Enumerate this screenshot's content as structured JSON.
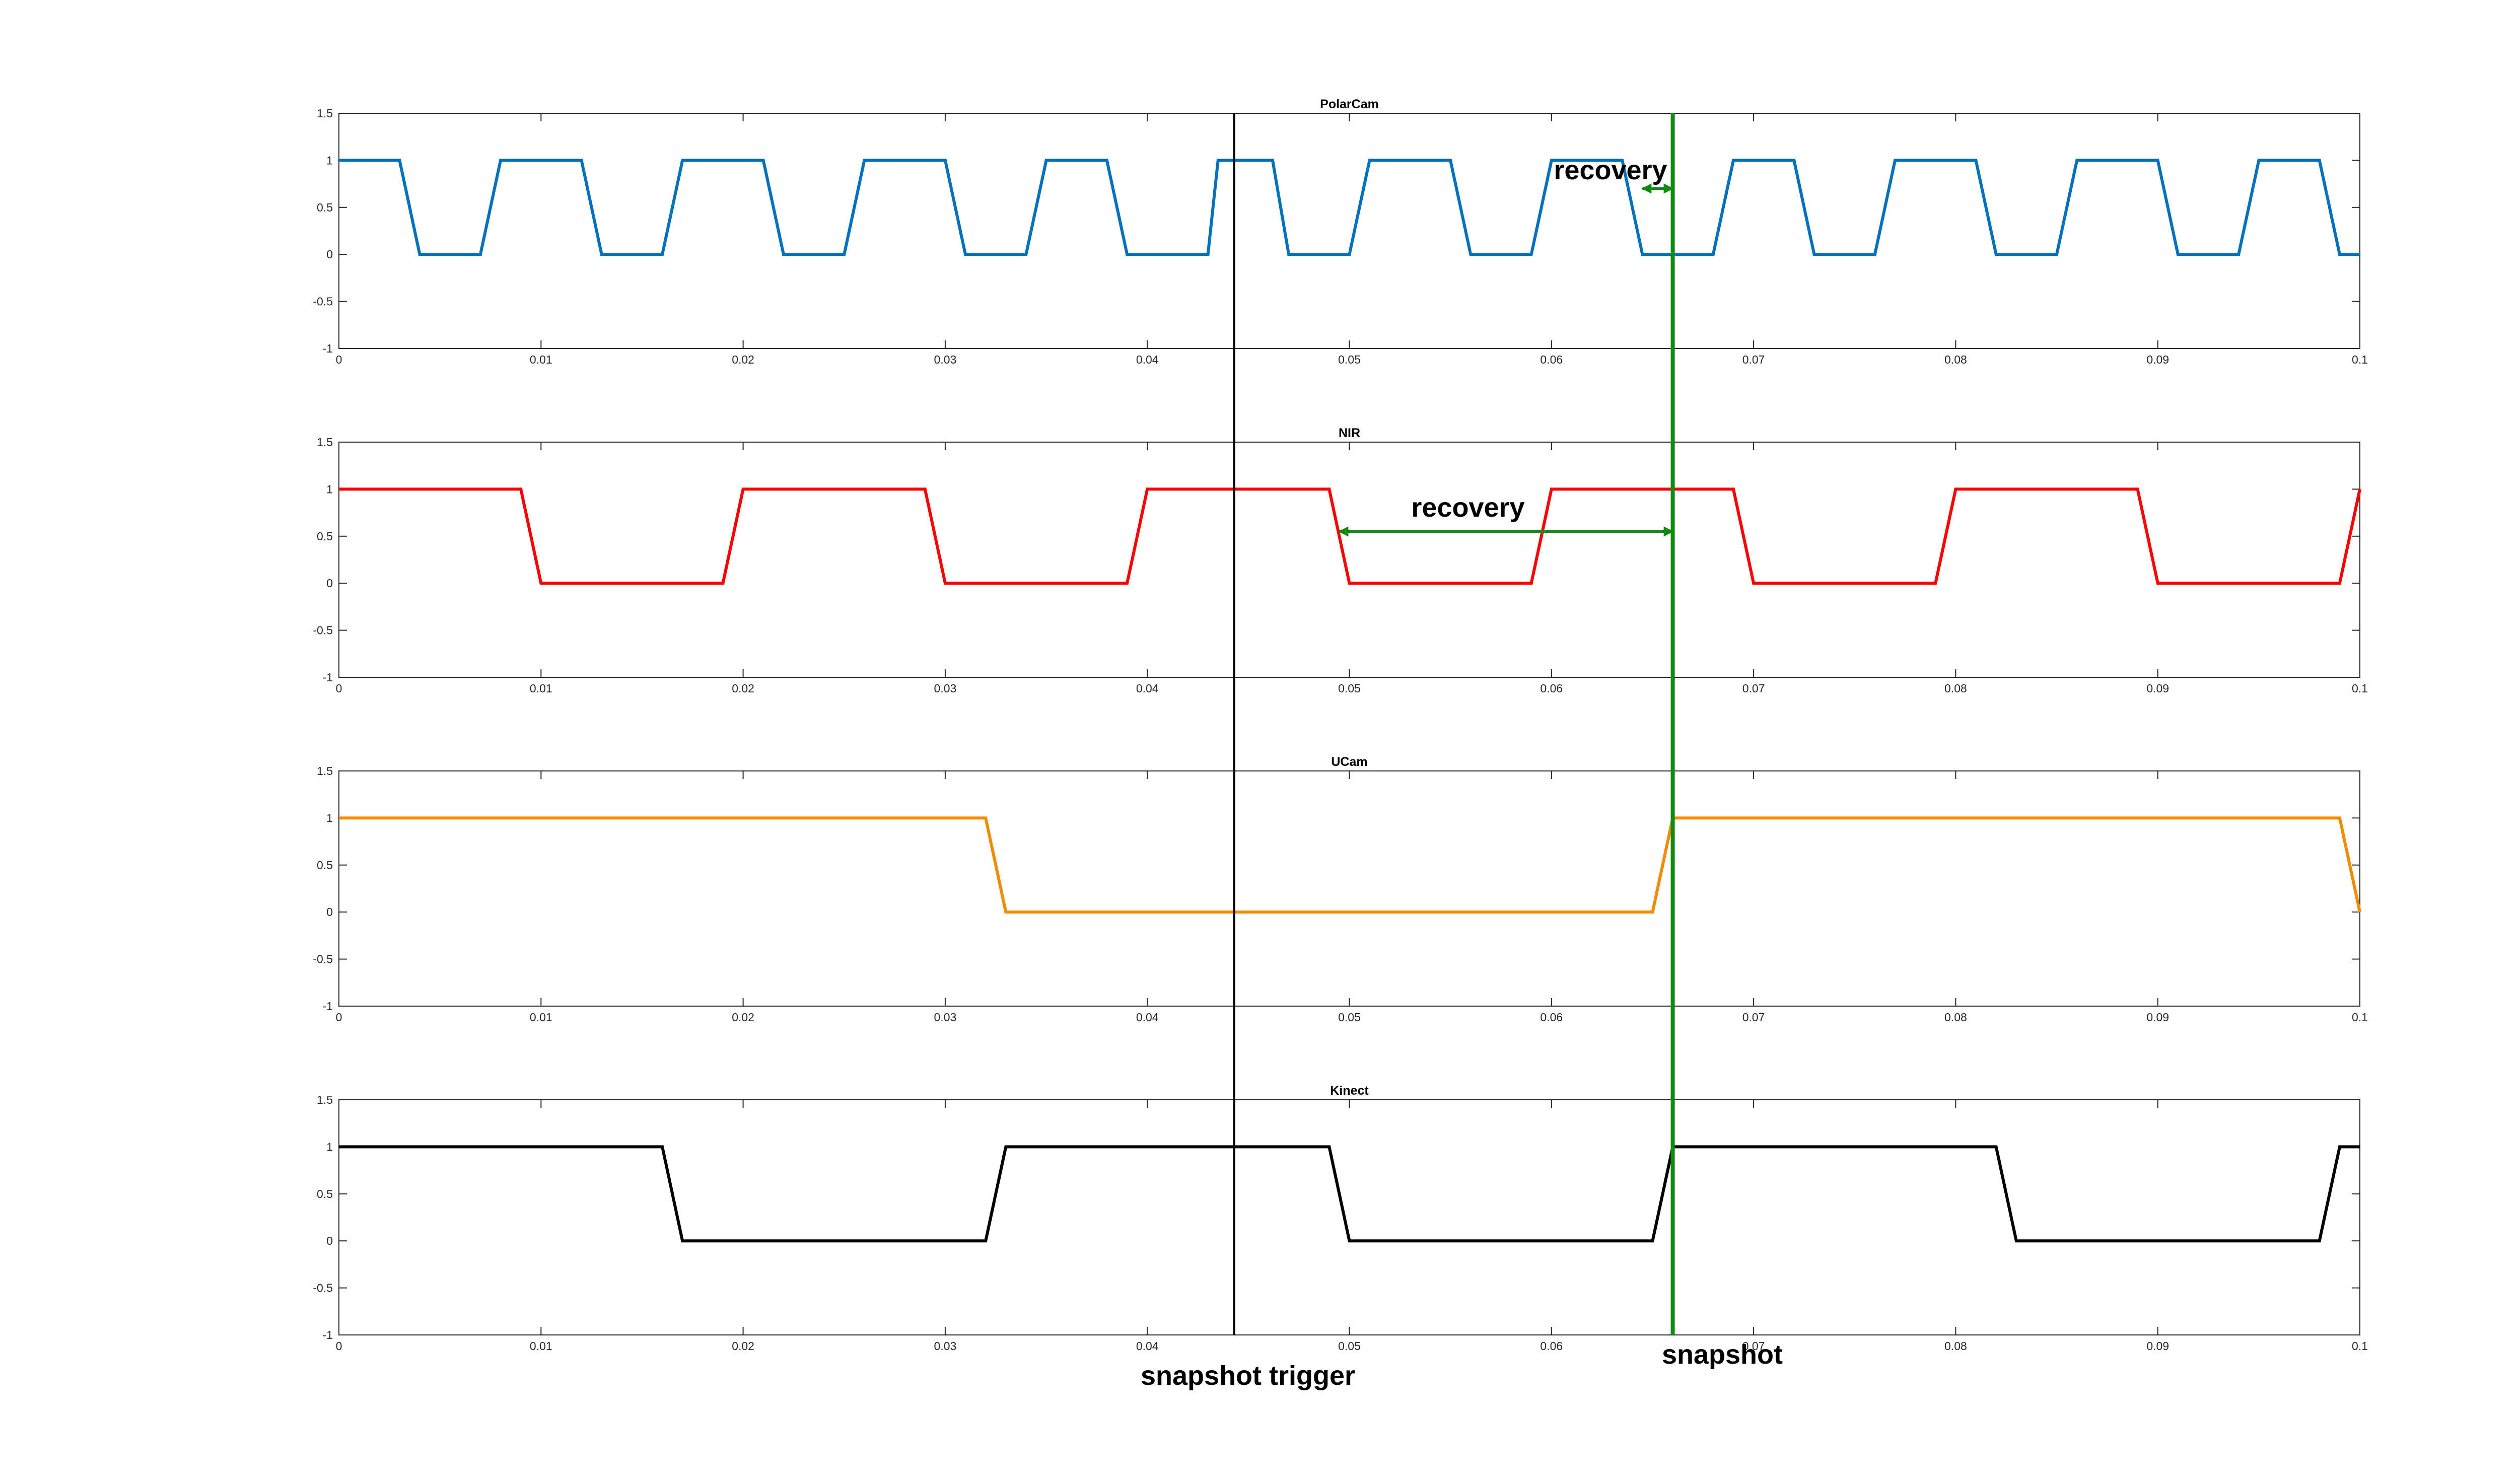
{
  "chart_data": [
    {
      "type": "line",
      "title": "PolarCam",
      "color": "#0072BD",
      "xlim": [
        0,
        0.1
      ],
      "ylim": [
        -1,
        1.5
      ],
      "xticks": [
        0,
        0.01,
        0.02,
        0.03,
        0.04,
        0.05,
        0.06,
        0.07,
        0.08,
        0.09,
        0.1
      ],
      "xtick_labels": [
        "0",
        "0.01",
        "0.02",
        "0.03",
        "0.04",
        "0.05",
        "0.06",
        "0.07",
        "0.08",
        "0.09",
        "0.1"
      ],
      "yticks": [
        -1,
        -0.5,
        0,
        0.5,
        1,
        1.5
      ],
      "ytick_labels": [
        "-1",
        "-0.5",
        "0",
        "0.5",
        "1",
        "1.5"
      ],
      "series": [
        {
          "x": [
            0,
            0.003,
            0.004,
            0.007,
            0.008,
            0.012,
            0.013,
            0.016,
            0.017,
            0.021,
            0.022,
            0.025,
            0.026,
            0.03,
            0.031,
            0.034,
            0.035,
            0.038,
            0.039,
            0.043,
            0.0435,
            0.0462,
            0.047,
            0.05,
            0.051,
            0.055,
            0.056,
            0.059,
            0.06,
            0.0635,
            0.0645,
            0.068,
            0.069,
            0.072,
            0.073,
            0.076,
            0.077,
            0.081,
            0.082,
            0.085,
            0.086,
            0.09,
            0.091,
            0.094,
            0.095,
            0.098,
            0.099,
            0.1
          ],
          "y": [
            1,
            1,
            0,
            0,
            1,
            1,
            0,
            0,
            1,
            1,
            0,
            0,
            1,
            1,
            0,
            0,
            1,
            1,
            0,
            0,
            1,
            1,
            0,
            0,
            1,
            1,
            0,
            0,
            1,
            1,
            0,
            0,
            1,
            1,
            0,
            0,
            1,
            1,
            0,
            0,
            1,
            1,
            0,
            0,
            1,
            1,
            0,
            0
          ]
        }
      ]
    },
    {
      "type": "line",
      "title": "NIR",
      "color": "#FF0000",
      "xlim": [
        0,
        0.1
      ],
      "ylim": [
        -1,
        1.5
      ],
      "xticks": [
        0,
        0.01,
        0.02,
        0.03,
        0.04,
        0.05,
        0.06,
        0.07,
        0.08,
        0.09,
        0.1
      ],
      "xtick_labels": [
        "0",
        "0.01",
        "0.02",
        "0.03",
        "0.04",
        "0.05",
        "0.06",
        "0.07",
        "0.08",
        "0.09",
        "0.1"
      ],
      "yticks": [
        -1,
        -0.5,
        0,
        0.5,
        1,
        1.5
      ],
      "ytick_labels": [
        "-1",
        "-0.5",
        "0",
        "0.5",
        "1",
        "1.5"
      ],
      "series": [
        {
          "x": [
            0,
            0.009,
            0.01,
            0.019,
            0.02,
            0.029,
            0.03,
            0.039,
            0.04,
            0.049,
            0.05,
            0.059,
            0.06,
            0.069,
            0.07,
            0.079,
            0.08,
            0.089,
            0.09,
            0.099,
            0.1
          ],
          "y": [
            1,
            1,
            0,
            0,
            1,
            1,
            0,
            0,
            1,
            1,
            0,
            0,
            1,
            1,
            0,
            0,
            1,
            1,
            0,
            0,
            1
          ]
        }
      ]
    },
    {
      "type": "line",
      "title": "UCam",
      "color": "#F28B00",
      "xlim": [
        0,
        0.1
      ],
      "ylim": [
        -1,
        1.5
      ],
      "xticks": [
        0,
        0.01,
        0.02,
        0.03,
        0.04,
        0.05,
        0.06,
        0.07,
        0.08,
        0.09,
        0.1
      ],
      "xtick_labels": [
        "0",
        "0.01",
        "0.02",
        "0.03",
        "0.04",
        "0.05",
        "0.06",
        "0.07",
        "0.08",
        "0.09",
        "0.1"
      ],
      "yticks": [
        -1,
        -0.5,
        0,
        0.5,
        1,
        1.5
      ],
      "ytick_labels": [
        "-1",
        "-0.5",
        "0",
        "0.5",
        "1",
        "1.5"
      ],
      "series": [
        {
          "x": [
            0,
            0.032,
            0.033,
            0.065,
            0.066,
            0.099,
            0.1
          ],
          "y": [
            1,
            1,
            0,
            0,
            1,
            1,
            0
          ]
        }
      ]
    },
    {
      "type": "line",
      "title": "Kinect",
      "color": "#000000",
      "xlim": [
        0,
        0.1
      ],
      "ylim": [
        -1,
        1.5
      ],
      "xticks": [
        0,
        0.01,
        0.02,
        0.03,
        0.04,
        0.05,
        0.06,
        0.07,
        0.08,
        0.09,
        0.1
      ],
      "xtick_labels": [
        "0",
        "0.01",
        "0.02",
        "0.03",
        "0.04",
        "0.05",
        "0.06",
        "0.07",
        "0.08",
        "0.09",
        "0.1"
      ],
      "yticks": [
        -1,
        -0.5,
        0,
        0.5,
        1,
        1.5
      ],
      "ytick_labels": [
        "-1",
        "-0.5",
        "0",
        "0.5",
        "1",
        "1.5"
      ],
      "series": [
        {
          "x": [
            0,
            0.016,
            0.017,
            0.032,
            0.033,
            0.049,
            0.05,
            0.065,
            0.066,
            0.082,
            0.083,
            0.098,
            0.099,
            0.1
          ],
          "y": [
            1,
            1,
            0,
            0,
            1,
            1,
            0,
            0,
            1,
            1,
            0,
            0,
            1,
            1
          ]
        }
      ]
    }
  ],
  "annotations": {
    "trigger_line": {
      "x": 0.0443,
      "label": "snapshot trigger",
      "color": "#000000"
    },
    "snapshot_line": {
      "x": 0.066,
      "label": "snapshot",
      "color": "#108A10"
    },
    "recovery_polarcam": {
      "label": "recovery",
      "x_from": 0.0645,
      "x_to": 0.066,
      "y": 0.7,
      "color": "#108A10"
    },
    "recovery_nir": {
      "label": "recovery",
      "x_from": 0.0495,
      "x_to": 0.066,
      "y": 0.55,
      "color": "#108A10"
    }
  }
}
